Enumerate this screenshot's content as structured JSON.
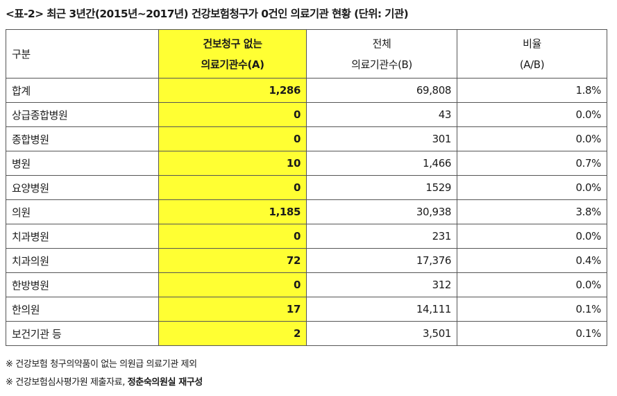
{
  "title": "<표-2> 최근 3년간(2015년~2017년) 건강보험청구가 0건인 의료기관 현황 (단위: 기관)",
  "header": {
    "category": "구분",
    "col_a_line1": "건보청구 없는",
    "col_a_line2": "의료기관수(A)",
    "col_b_line1": "전체",
    "col_b_line2": "의료기관수(B)",
    "col_c_line1": "비율",
    "col_c_line2": "(A/B)"
  },
  "rows": [
    {
      "name": "합계",
      "a": "1,286",
      "b": "69,808",
      "ratio": "1.8%"
    },
    {
      "name": "상급종합병원",
      "a": "0",
      "b": "43",
      "ratio": "0.0%"
    },
    {
      "name": "종합병원",
      "a": "0",
      "b": "301",
      "ratio": "0.0%"
    },
    {
      "name": "병원",
      "a": "10",
      "b": "1,466",
      "ratio": "0.7%"
    },
    {
      "name": "요양병원",
      "a": "0",
      "b": "1529",
      "ratio": "0.0%"
    },
    {
      "name": "의원",
      "a": "1,185",
      "b": "30,938",
      "ratio": "3.8%"
    },
    {
      "name": "치과병원",
      "a": "0",
      "b": "231",
      "ratio": "0.0%"
    },
    {
      "name": "치과의원",
      "a": "72",
      "b": "17,376",
      "ratio": "0.4%"
    },
    {
      "name": "한방병원",
      "a": "0",
      "b": "312",
      "ratio": "0.0%"
    },
    {
      "name": "한의원",
      "a": "17",
      "b": "14,111",
      "ratio": "0.1%"
    },
    {
      "name": "보건기관 등",
      "a": "2",
      "b": "3,501",
      "ratio": "0.1%"
    }
  ],
  "notes": {
    "note1": "※ 건강보험 청구의약품이 없는 의원급 의료기관 제외",
    "note2_prefix": "※ 건강보험심사평가원 제출자료, ",
    "note2_bold": "정춘숙의원실 재구성"
  },
  "colors": {
    "highlight": "#ffff33",
    "border": "#555555"
  }
}
